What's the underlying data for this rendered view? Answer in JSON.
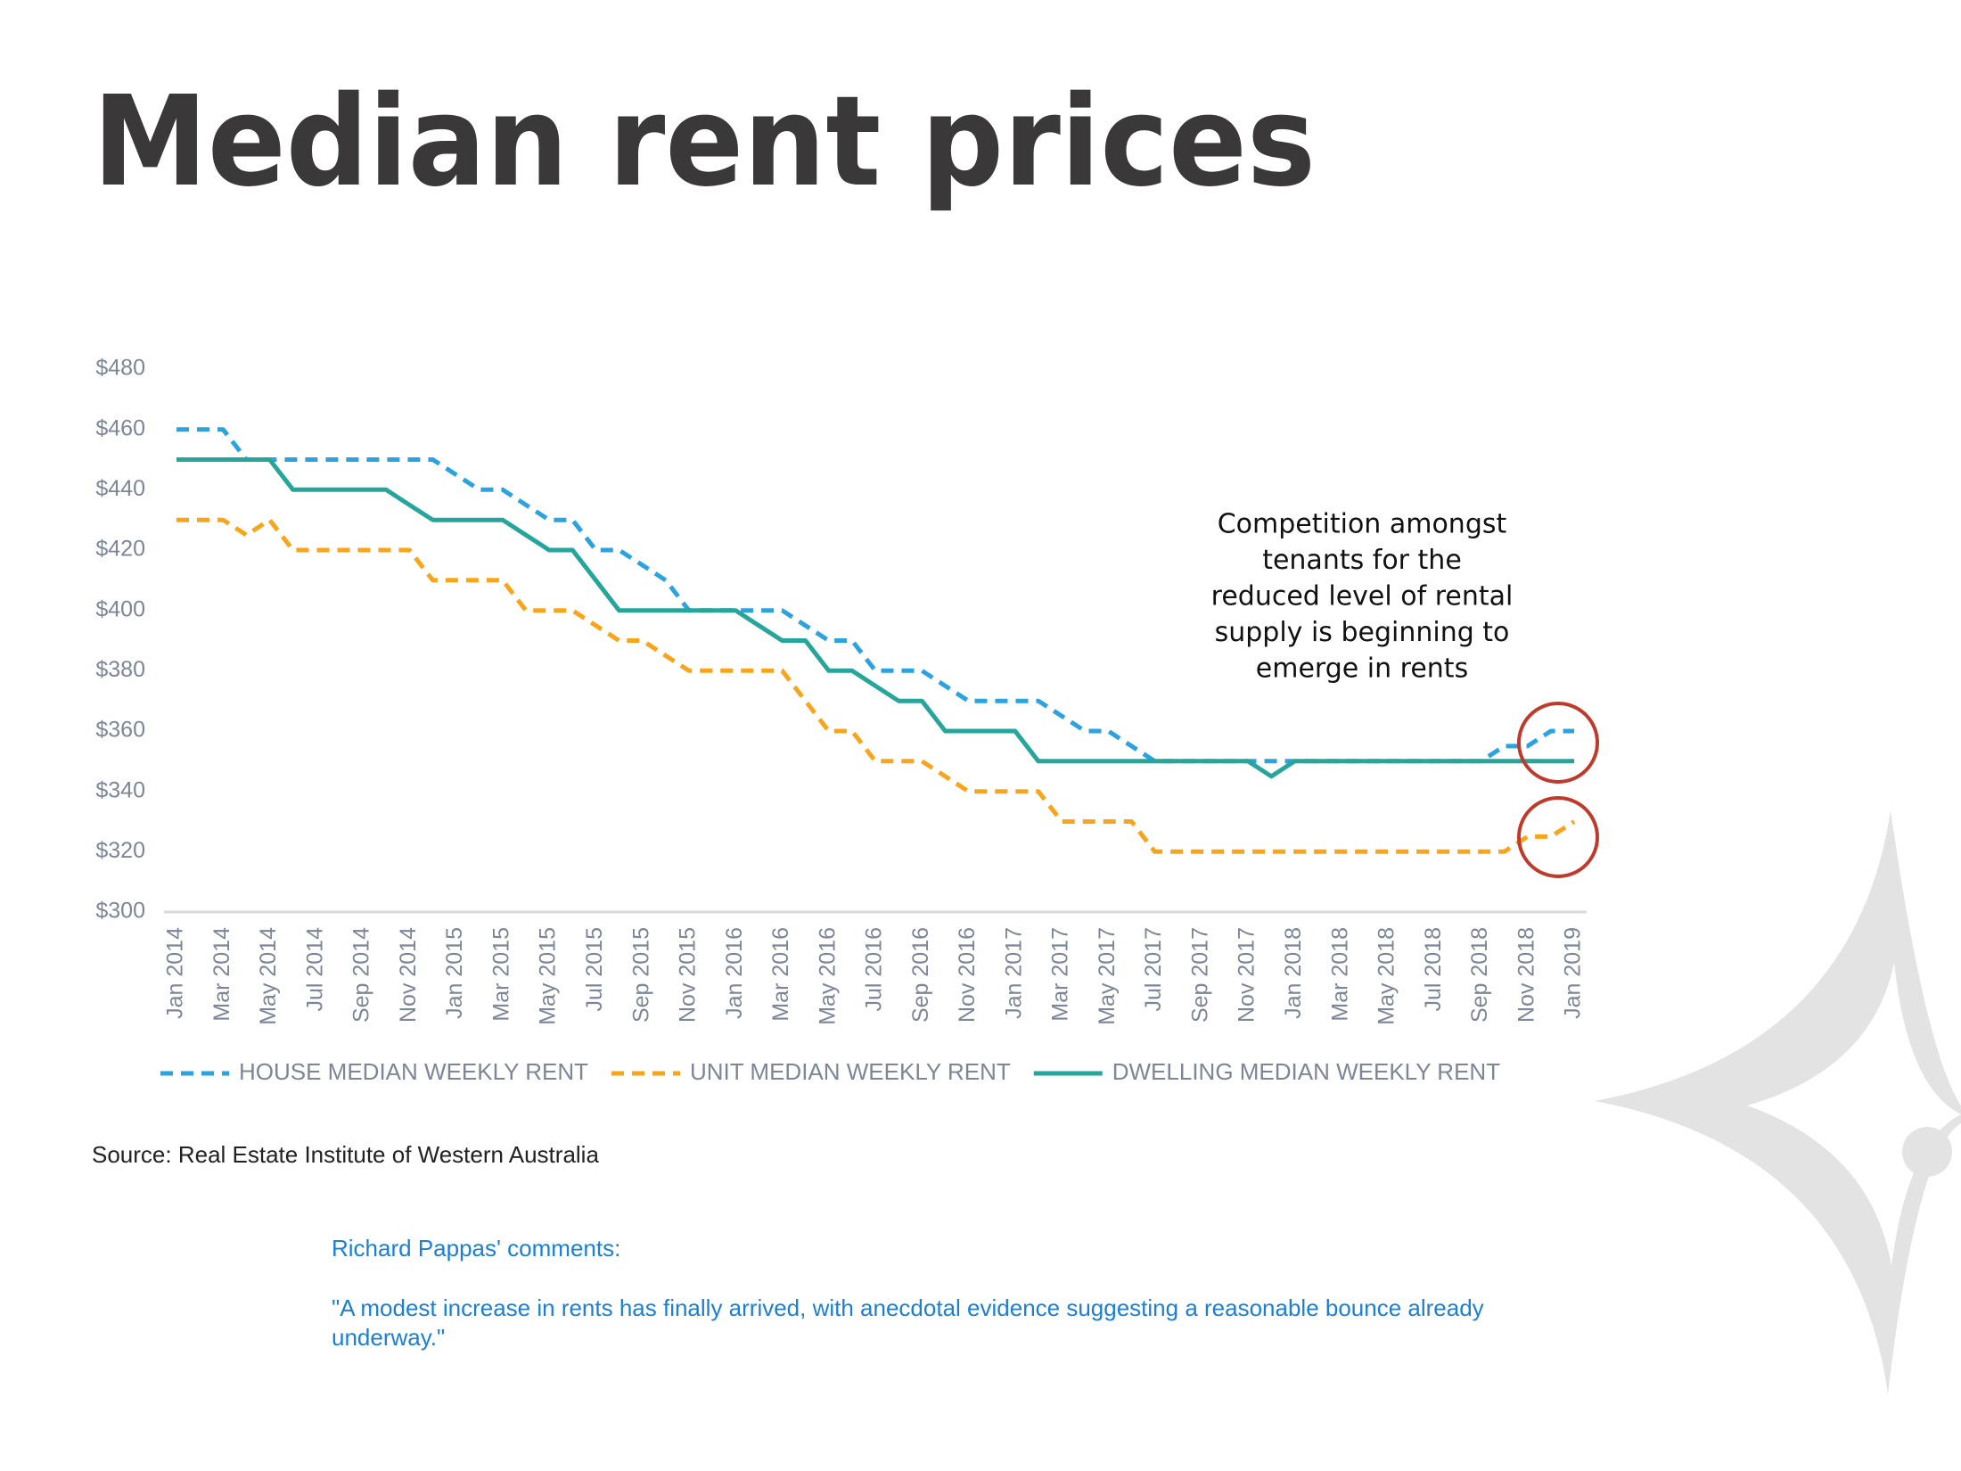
{
  "chart_data": {
    "type": "line",
    "title": "Median rent prices",
    "categories": [
      "Jan 2014",
      null,
      "Mar 2014",
      null,
      "May 2014",
      null,
      "Jul 2014",
      null,
      "Sep 2014",
      null,
      "Nov 2014",
      null,
      "Jan 2015",
      null,
      "Mar 2015",
      null,
      "May 2015",
      null,
      "Jul 2015",
      null,
      "Sep 2015",
      null,
      "Nov 2015",
      null,
      "Jan 2016",
      null,
      "Mar 2016",
      null,
      "May 2016",
      null,
      "Jul 2016",
      null,
      "Sep 2016",
      null,
      "Nov 2016",
      null,
      "Jan 2017",
      null,
      "Mar 2017",
      null,
      "May 2017",
      null,
      "Jul 2017",
      null,
      "Sep 2017",
      null,
      "Nov 2017",
      null,
      "Jan 2018",
      null,
      "Mar 2018",
      null,
      "May 2018",
      null,
      "Jul 2018",
      null,
      "Sep 2018",
      null,
      "Nov 2018",
      null,
      "Jan 2019"
    ],
    "series": [
      {
        "name": "HOUSE MEDIAN WEEKLY RENT",
        "color": "#2ba3de",
        "dashed": true,
        "values": [
          460,
          460,
          460,
          450,
          450,
          450,
          450,
          450,
          450,
          450,
          450,
          450,
          445,
          440,
          440,
          435,
          430,
          430,
          420,
          420,
          415,
          410,
          400,
          400,
          400,
          400,
          400,
          395,
          390,
          390,
          380,
          380,
          380,
          375,
          370,
          370,
          370,
          370,
          365,
          360,
          360,
          355,
          350,
          350,
          350,
          350,
          350,
          350,
          350,
          350,
          350,
          350,
          350,
          350,
          350,
          350,
          350,
          355,
          355,
          360,
          360
        ]
      },
      {
        "name": "UNIT MEDIAN WEEKLY RENT",
        "color": "#f8a51b",
        "dashed": true,
        "values": [
          430,
          430,
          430,
          425,
          430,
          420,
          420,
          420,
          420,
          420,
          420,
          410,
          410,
          410,
          410,
          400,
          400,
          400,
          395,
          390,
          390,
          385,
          380,
          380,
          380,
          380,
          380,
          370,
          360,
          360,
          350,
          350,
          350,
          345,
          340,
          340,
          340,
          340,
          330,
          330,
          330,
          330,
          320,
          320,
          320,
          320,
          320,
          320,
          320,
          320,
          320,
          320,
          320,
          320,
          320,
          320,
          320,
          320,
          325,
          325,
          330
        ]
      },
      {
        "name": "DWELLING MEDIAN WEEKLY RENT",
        "color": "#26a69a",
        "dashed": false,
        "values": [
          450,
          450,
          450,
          450,
          450,
          440,
          440,
          440,
          440,
          440,
          435,
          430,
          430,
          430,
          430,
          425,
          420,
          420,
          410,
          400,
          400,
          400,
          400,
          400,
          400,
          395,
          390,
          390,
          380,
          380,
          375,
          370,
          370,
          360,
          360,
          360,
          360,
          350,
          350,
          350,
          350,
          350,
          350,
          350,
          350,
          350,
          350,
          345,
          350,
          350,
          350,
          350,
          350,
          350,
          350,
          350,
          350,
          350,
          350,
          350,
          350
        ]
      }
    ],
    "ylim": [
      300,
      480
    ],
    "yticks": [
      {
        "value": 300,
        "label": "$300"
      },
      {
        "value": 320,
        "label": "$320"
      },
      {
        "value": 340,
        "label": "$340"
      },
      {
        "value": 360,
        "label": "$360"
      },
      {
        "value": 380,
        "label": "$380"
      },
      {
        "value": 400,
        "label": "$400"
      },
      {
        "value": 420,
        "label": "$420"
      },
      {
        "value": 440,
        "label": "$440"
      },
      {
        "value": 460,
        "label": "$460"
      },
      {
        "value": 480,
        "label": "$480"
      }
    ],
    "grid": false,
    "legend": "bottom",
    "annotation": [
      "Competition amongst",
      "tenants for the",
      "reduced level of rental",
      "supply is beginning to",
      "emerge in rents"
    ]
  },
  "source": "Source: Real Estate Institute of Western Australia",
  "comments": {
    "heading": "Richard Pappas' comments:",
    "quote": "\"A modest increase in rents has finally arrived, with anecdotal evidence suggesting a reasonable bounce already underway.\""
  }
}
